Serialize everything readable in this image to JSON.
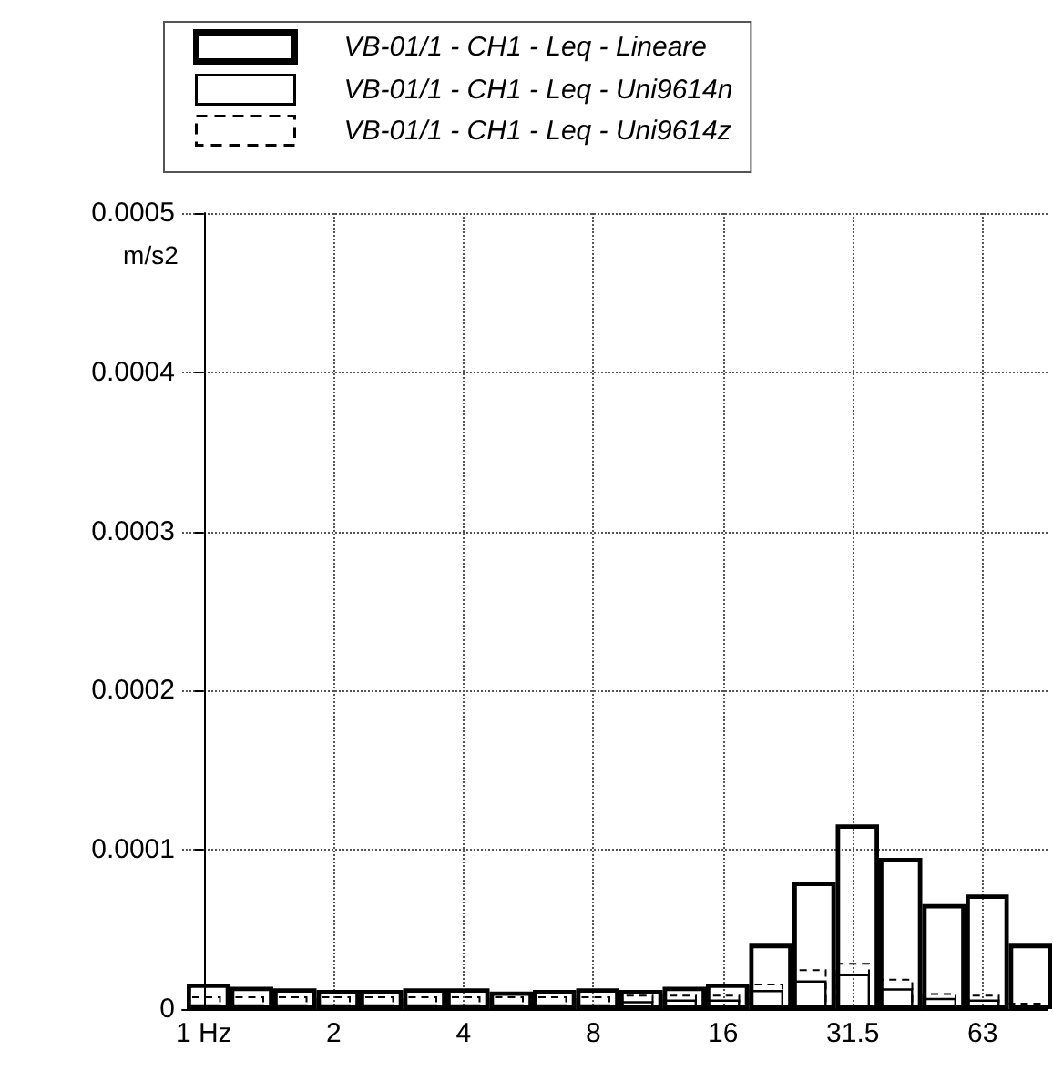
{
  "chart_data": {
    "type": "bar",
    "ylabel": "m/s2",
    "categories": [
      "1 Hz",
      null,
      null,
      "2",
      null,
      null,
      "4",
      null,
      null,
      "8",
      null,
      null,
      "16",
      null,
      null,
      "31.5",
      null,
      null,
      "63",
      null
    ],
    "series": [
      {
        "name": "VB-01/1 - CH1 - Leq - Lineare",
        "color": "#000000",
        "line_style": "solid",
        "values": [
          1.6e-05,
          1.4e-05,
          1.3e-05,
          1.2e-05,
          1.2e-05,
          1.3e-05,
          1.3e-05,
          1.1e-05,
          1.2e-05,
          1.3e-05,
          1.2e-05,
          1.4e-05,
          1.6e-05,
          4.1e-05,
          8e-05,
          0.000116,
          9.5e-05,
          6.6e-05,
          7.2e-05,
          4.1e-05
        ]
      },
      {
        "name": "VB-01/1 - CH1 - Leq - Uni9614n",
        "color": "#000000",
        "line_style": "solid",
        "values": [
          3e-06,
          3e-06,
          3e-06,
          3e-06,
          3e-06,
          3e-06,
          3e-06,
          3e-06,
          3e-06,
          3e-06,
          5e-06,
          6e-06,
          6e-06,
          1.2e-05,
          1.8e-05,
          2.2e-05,
          1.3e-05,
          7e-06,
          6e-06,
          null
        ]
      },
      {
        "name": "VB-01/1 - CH1 - Leq - Uni9614z",
        "color": "#000000",
        "line_style": "dashed",
        "values": [
          8e-06,
          8e-06,
          8e-06,
          8e-06,
          8e-06,
          8e-06,
          8e-06,
          8e-06,
          8e-06,
          8e-06,
          9e-06,
          9e-06,
          9e-06,
          1.6e-05,
          2.5e-05,
          2.9e-05,
          1.9e-05,
          1e-05,
          9e-06,
          4e-06
        ]
      }
    ],
    "ylim": [
      0,
      0.0005
    ],
    "yticks": [
      0,
      0.0001,
      0.0002,
      0.0003,
      0.0004,
      0.0005
    ],
    "grid": true,
    "legend": "top"
  }
}
